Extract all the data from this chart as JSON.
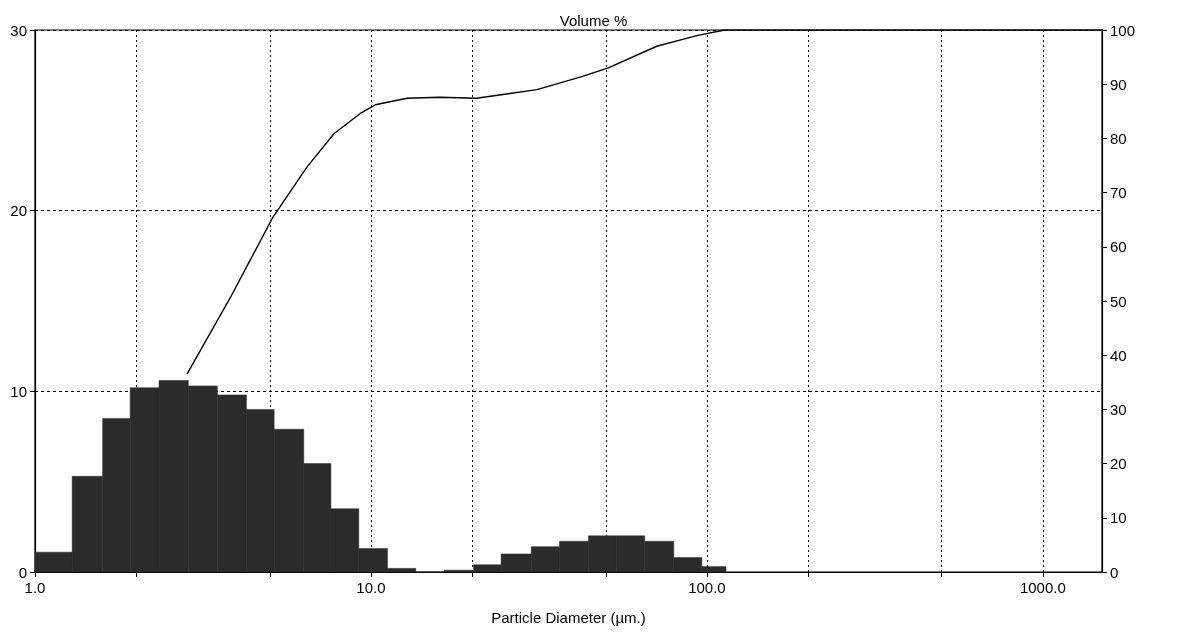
{
  "chart_data": {
    "type": "histogram",
    "title": "Volume %",
    "xlabel": "Particle Diameter (µm.)",
    "bins": [
      1.0,
      1.29,
      1.59,
      1.92,
      2.34,
      2.86,
      3.49,
      4.26,
      5.15,
      6.31,
      7.6,
      9.2,
      11.2,
      13.6,
      16.5,
      20.2,
      24.4,
      30.0,
      36.4,
      44.4,
      53.8,
      65.3,
      79.7,
      96.6,
      114
    ],
    "values": [
      1.1,
      5.3,
      8.5,
      10.2,
      10.6,
      10.3,
      9.8,
      9.0,
      7.9,
      6.0,
      3.5,
      1.3,
      0.2,
      0,
      0.1,
      0.4,
      1.0,
      1.4,
      1.7,
      2.0,
      2.0,
      1.7,
      0.8,
      0.3
    ],
    "color": "#2b2b2b",
    "series": [
      {
        "type": "line",
        "axis": "y2",
        "color": "#000000",
        "x": [
          2.84,
          3.82,
          5.1,
          6.43,
          7.77,
          9.3,
          10.3,
          12.8,
          16,
          20.6,
          31.2,
          42.4,
          50.9,
          70.9,
          94,
          113,
          1500
        ],
        "values": [
          36.6,
          50.7,
          65.4,
          74.6,
          80.9,
          84.6,
          86.2,
          87.4,
          87.6,
          87.4,
          89,
          91.4,
          93,
          97,
          99,
          100,
          100
        ]
      }
    ],
    "log": "x",
    "xlim": [
      1,
      1500
    ],
    "xticks": [
      {
        "value": 1,
        "label": "1.0"
      },
      {
        "value": 2,
        "label": null
      },
      {
        "value": 5,
        "label": null
      },
      {
        "value": 10,
        "label": "10.0"
      },
      {
        "value": 20,
        "label": null
      },
      {
        "value": 50,
        "label": null
      },
      {
        "value": 100,
        "label": "100.0"
      },
      {
        "value": 200,
        "label": null
      },
      {
        "value": 500,
        "label": null
      },
      {
        "value": 1000,
        "label": "1000.0"
      }
    ],
    "ylim": [
      0,
      30
    ],
    "yticks": [
      0,
      10,
      20,
      30
    ],
    "y2lim": [
      0,
      100
    ],
    "y2ticks": [
      0,
      10,
      20,
      30,
      40,
      50,
      60,
      70,
      80,
      90,
      100
    ],
    "grid": true,
    "marker": "none",
    "line_style": "solid"
  }
}
